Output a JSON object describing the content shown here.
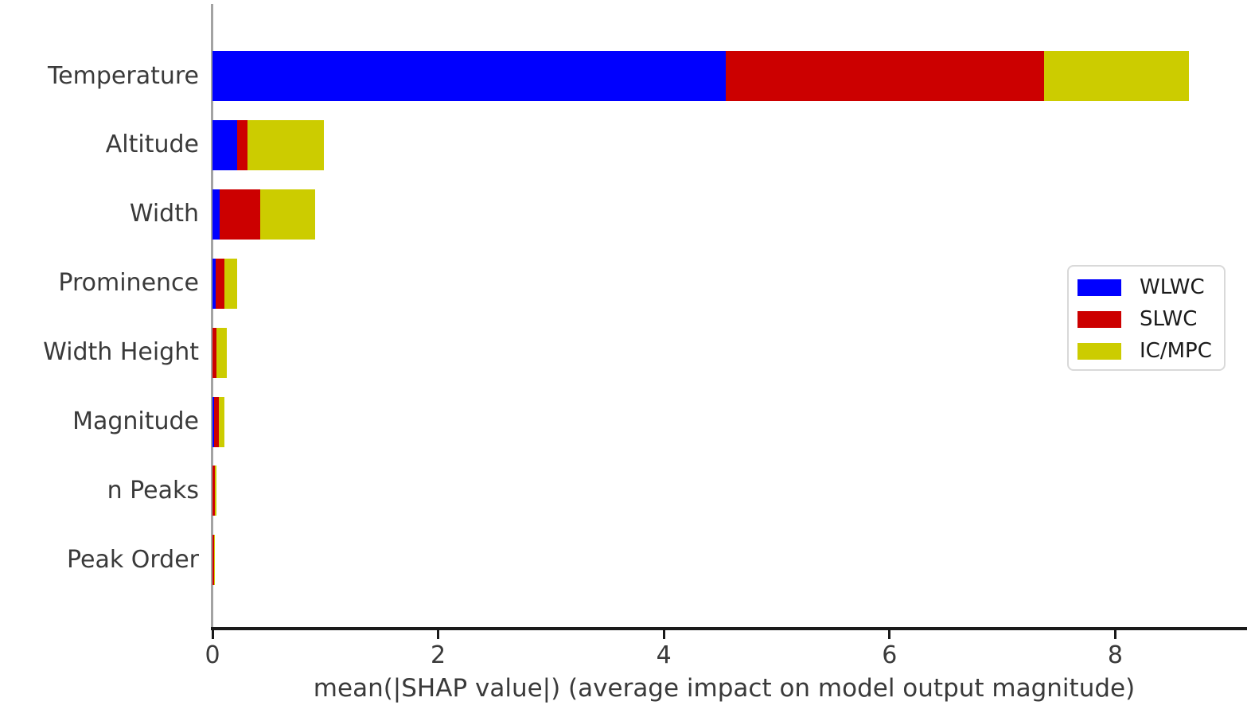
{
  "chart_data": {
    "type": "bar",
    "orientation": "horizontal",
    "stacked": true,
    "title": "",
    "xlabel": "mean(|SHAP value|) (average impact on model output magnitude)",
    "ylabel": "",
    "categories": [
      "Temperature",
      "Altitude",
      "Width",
      "Prominence",
      "Width Height",
      "Magnitude",
      "n Peaks",
      "Peak Order"
    ],
    "series": [
      {
        "name": "WLWC",
        "color": "#0000ff",
        "values": [
          4.55,
          0.22,
          0.06,
          0.028,
          0.0,
          0.015,
          0.0,
          0.0
        ]
      },
      {
        "name": "SLWC",
        "color": "#cc0000",
        "values": [
          2.82,
          0.09,
          0.36,
          0.078,
          0.032,
          0.038,
          0.023,
          0.014
        ]
      },
      {
        "name": "IC/MPC",
        "color": "#cccc00",
        "values": [
          1.28,
          0.68,
          0.49,
          0.115,
          0.095,
          0.052,
          0.01,
          0.008
        ]
      }
    ],
    "totals": [
      8.65,
      0.99,
      0.91,
      0.221,
      0.127,
      0.105,
      0.033,
      0.022
    ],
    "x_ticks": [
      "0",
      "2",
      "4",
      "6",
      "8"
    ],
    "x_tick_values": [
      0,
      2,
      4,
      6,
      8
    ],
    "xlim": [
      0,
      9.17
    ],
    "grid": false,
    "legend_position": "center-right",
    "legend_entries": [
      "WLWC",
      "SLWC",
      "IC/MPC"
    ]
  },
  "colors": {
    "background": "#ffffff",
    "axis_line": "#1a1a1a",
    "left_spine": "#a3a3a3",
    "text": "#3a3a3a",
    "legend_border": "#d9d9d9",
    "wlwc_blue": "#0000ff",
    "slwc_red": "#cc0000",
    "icmpc_yellow": "#cccc00"
  }
}
